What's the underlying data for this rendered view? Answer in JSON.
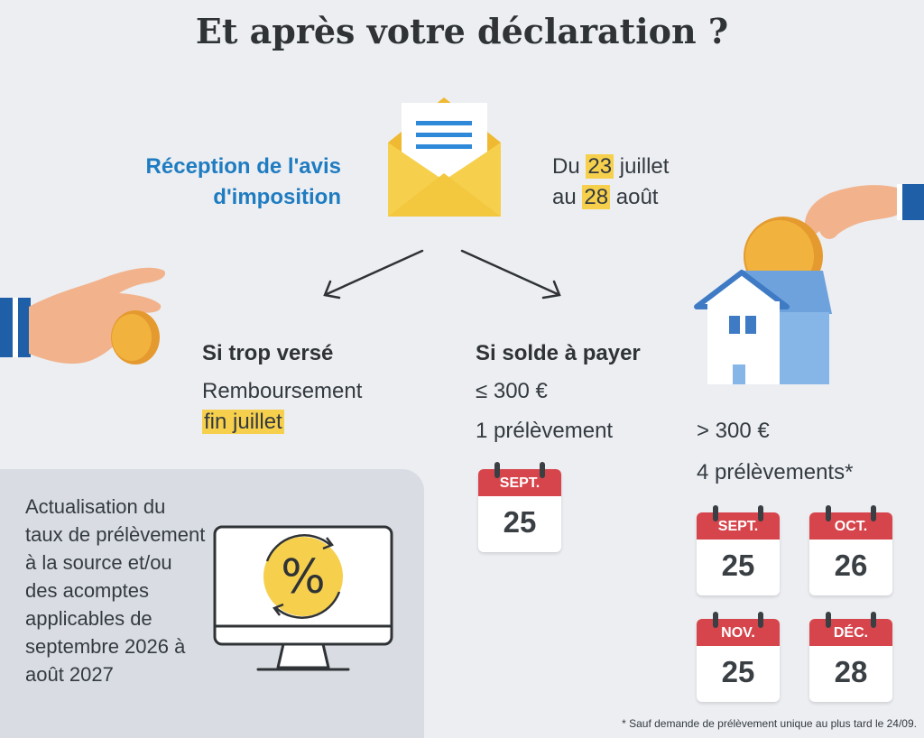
{
  "title": "Et après votre déclaration ?",
  "reception": {
    "label_line1": "Réception de l'avis",
    "label_line2": "d'imposition",
    "date_prefix1": "Du ",
    "date_day1": "23",
    "date_suffix1": " juillet",
    "date_prefix2": "au ",
    "date_day2": "28",
    "date_suffix2": " août"
  },
  "overpaid": {
    "heading": "Si trop versé",
    "line1": "Remboursement",
    "line2": "fin juillet"
  },
  "balance": {
    "heading": "Si solde à payer",
    "small_amount": "≤ 300 €",
    "small_count": "1 prélèvement",
    "large_amount": "> 300 €",
    "large_count": "4 prélèvements*"
  },
  "calendars_single": [
    {
      "month": "SEPT.",
      "day": "25"
    }
  ],
  "calendars_multi": [
    {
      "month": "SEPT.",
      "day": "25"
    },
    {
      "month": "OCT.",
      "day": "26"
    },
    {
      "month": "NOV.",
      "day": "25"
    },
    {
      "month": "DÉC.",
      "day": "28"
    }
  ],
  "panel": {
    "text": "Actualisation du taux de prélèvement à la source et/ou des acomptes applicables de septembre 2026 à août 2027"
  },
  "footnote": "* Sauf demande de prélèvement unique au plus tard le 24/09.",
  "colors": {
    "background": "#eceef2",
    "accent_blue": "#1f7cc1",
    "highlight": "#f6d04d",
    "calendar_red": "#d6454c"
  }
}
